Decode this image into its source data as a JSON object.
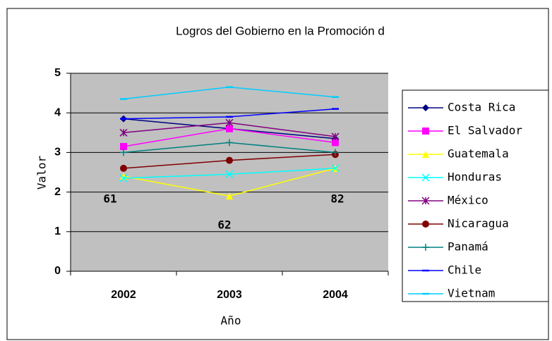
{
  "chart_data": {
    "type": "line",
    "title": "Logros del Gobierno en la Promoción d",
    "x_label": "Año",
    "y_label": "Valor",
    "categories": [
      "2002",
      "2003",
      "2004"
    ],
    "ylim": [
      0,
      5
    ],
    "yticks": [
      0,
      1,
      2,
      3,
      4,
      5
    ],
    "grid": true,
    "annotations": [
      "61",
      "62",
      "82"
    ],
    "series": [
      {
        "name": "Costa Rica",
        "color": "#000080",
        "marker": "diamond",
        "values": [
          3.85,
          3.6,
          3.35
        ]
      },
      {
        "name": "El Salvador",
        "color": "#ff00ff",
        "marker": "square",
        "values": [
          3.15,
          3.6,
          3.25
        ]
      },
      {
        "name": "Guatemala",
        "color": "#ffff00",
        "marker": "triangle",
        "values": [
          2.4,
          1.9,
          2.6
        ]
      },
      {
        "name": "Honduras",
        "color": "#00ffff",
        "marker": "x",
        "values": [
          2.35,
          2.45,
          2.6
        ]
      },
      {
        "name": "México",
        "color": "#800080",
        "marker": "star",
        "values": [
          3.5,
          3.75,
          3.4
        ]
      },
      {
        "name": "Nicaragua",
        "color": "#800000",
        "marker": "circle",
        "values": [
          2.6,
          2.8,
          2.95
        ]
      },
      {
        "name": "Panamá",
        "color": "#008080",
        "marker": "plus",
        "values": [
          3.0,
          3.25,
          3.0
        ]
      },
      {
        "name": "Chile",
        "color": "#0000ff",
        "marker": "dash",
        "values": [
          3.85,
          3.9,
          4.1
        ]
      },
      {
        "name": "Vietnam",
        "color": "#00ccff",
        "marker": "dash",
        "values": [
          4.35,
          4.65,
          4.4
        ]
      }
    ]
  }
}
